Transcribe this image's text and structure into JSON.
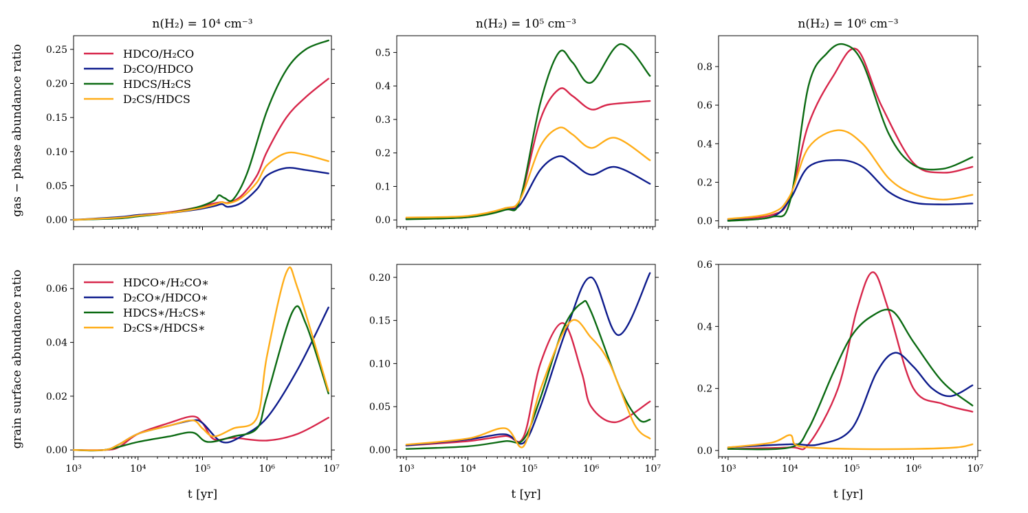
{
  "figure": {
    "ylabel_top": "gas − phase abundance ratio",
    "ylabel_bottom": "grain surface abundance ratio",
    "xlabel": "t [yr]",
    "column_titles": [
      "n(H₂) = 10⁴ cm⁻³",
      "n(H₂) = 10⁵ cm⁻³",
      "n(H₂) = 10⁶ cm⁻³"
    ]
  },
  "colors": {
    "s0": "#d7264a",
    "s1": "#0d1b8c",
    "s2": "#0b6a12",
    "s3": "#ffad18"
  },
  "chart_data": [
    {
      "type": "line",
      "row": 0,
      "col": 0,
      "xscale": "log",
      "title": "n(H₂) = 10⁴ cm⁻³",
      "xlabel": "",
      "ylabel": "gas − phase abundance ratio",
      "xlim": [
        1000,
        10000000
      ],
      "ylim": [
        -0.01,
        0.27
      ],
      "yticks": [
        0,
        0.05,
        0.1,
        0.15,
        0.2,
        0.25
      ],
      "ytick_labels": [
        "0.00",
        "0.05",
        "0.10",
        "0.15",
        "0.20",
        "0.25"
      ],
      "xtick_labels": [
        "",
        "",
        "",
        "",
        ""
      ],
      "legend": "top-left",
      "series": [
        {
          "name": "HDCO/H₂CO",
          "color_key": "s0",
          "x": [
            1000,
            5000,
            10000,
            30000,
            80000,
            150000,
            200000,
            250000,
            400000,
            700000,
            1000000,
            2000000,
            4000000,
            9000000
          ],
          "values": [
            0,
            0.003,
            0.007,
            0.011,
            0.018,
            0.024,
            0.026,
            0.025,
            0.035,
            0.065,
            0.1,
            0.15,
            0.18,
            0.207
          ]
        },
        {
          "name": "D₂CO/HDCO",
          "color_key": "s1",
          "x": [
            1000,
            5000,
            10000,
            30000,
            80000,
            150000,
            200000,
            250000,
            400000,
            700000,
            1000000,
            2000000,
            4000000,
            9000000
          ],
          "values": [
            0,
            0.004,
            0.007,
            0.01,
            0.015,
            0.02,
            0.023,
            0.019,
            0.025,
            0.045,
            0.065,
            0.076,
            0.073,
            0.068
          ]
        },
        {
          "name": "HDCS/H₂CS",
          "color_key": "s2",
          "x": [
            1000,
            5000,
            10000,
            30000,
            80000,
            150000,
            180000,
            220000,
            300000,
            500000,
            1000000,
            2000000,
            4000000,
            9000000
          ],
          "values": [
            0,
            0.002,
            0.005,
            0.01,
            0.018,
            0.028,
            0.036,
            0.032,
            0.03,
            0.07,
            0.16,
            0.22,
            0.25,
            0.263
          ]
        },
        {
          "name": "D₂CS/HDCS",
          "color_key": "s3",
          "x": [
            1000,
            5000,
            10000,
            30000,
            80000,
            150000,
            200000,
            250000,
            400000,
            700000,
            1000000,
            2000000,
            4000000,
            9000000
          ],
          "values": [
            0,
            0.003,
            0.006,
            0.01,
            0.016,
            0.022,
            0.026,
            0.024,
            0.032,
            0.055,
            0.08,
            0.098,
            0.095,
            0.086
          ]
        }
      ]
    },
    {
      "type": "line",
      "row": 0,
      "col": 1,
      "xscale": "log",
      "title": "n(H₂) = 10⁵ cm⁻³",
      "xlabel": "",
      "ylabel": "",
      "xlim": [
        700,
        11000000
      ],
      "ylim": [
        -0.02,
        0.55
      ],
      "yticks": [
        0,
        0.1,
        0.2,
        0.3,
        0.4,
        0.5
      ],
      "ytick_labels": [
        "0.0",
        "0.1",
        "0.2",
        "0.3",
        "0.4",
        "0.5"
      ],
      "xtick_labels": [
        "",
        "",
        "",
        "",
        ""
      ],
      "series": [
        {
          "name": "HDCO/H₂CO",
          "color_key": "s0",
          "x": [
            1000,
            10000,
            40000,
            70000,
            150000,
            300000,
            500000,
            1000000,
            2000000,
            9000000
          ],
          "values": [
            0.005,
            0.01,
            0.035,
            0.06,
            0.3,
            0.39,
            0.37,
            0.33,
            0.345,
            0.355
          ]
        },
        {
          "name": "D₂CO/HDCO",
          "color_key": "s1",
          "x": [
            1000,
            10000,
            40000,
            70000,
            150000,
            300000,
            500000,
            1000000,
            2500000,
            9000000
          ],
          "values": [
            0.003,
            0.008,
            0.03,
            0.045,
            0.15,
            0.19,
            0.17,
            0.135,
            0.158,
            0.108
          ]
        },
        {
          "name": "HDCS/H₂CS",
          "color_key": "s2",
          "x": [
            1000,
            10000,
            40000,
            70000,
            150000,
            300000,
            500000,
            1000000,
            3000000,
            9000000
          ],
          "values": [
            0.002,
            0.008,
            0.03,
            0.06,
            0.35,
            0.5,
            0.47,
            0.41,
            0.525,
            0.43
          ]
        },
        {
          "name": "D₂CS/HDCS",
          "color_key": "s3",
          "x": [
            1000,
            10000,
            40000,
            70000,
            150000,
            300000,
            500000,
            1000000,
            2500000,
            9000000
          ],
          "values": [
            0.007,
            0.012,
            0.035,
            0.06,
            0.22,
            0.275,
            0.255,
            0.215,
            0.245,
            0.178
          ]
        }
      ]
    },
    {
      "type": "line",
      "row": 0,
      "col": 2,
      "xscale": "log",
      "title": "n(H₂) = 10⁶ cm⁻³",
      "xlabel": "",
      "ylabel": "",
      "xlim": [
        700,
        11000000
      ],
      "ylim": [
        -0.03,
        0.96
      ],
      "yticks": [
        0,
        0.2,
        0.4,
        0.6,
        0.8
      ],
      "ytick_labels": [
        "0.0",
        "0.2",
        "0.4",
        "0.6",
        "0.8"
      ],
      "xtick_labels": [
        "",
        "",
        "",
        "",
        ""
      ],
      "series": [
        {
          "name": "HDCO/H₂CO",
          "color_key": "s0",
          "x": [
            1000,
            5000,
            10000,
            20000,
            50000,
            120000,
            300000,
            1000000,
            3000000,
            9000000
          ],
          "values": [
            0.01,
            0.03,
            0.12,
            0.5,
            0.75,
            0.89,
            0.6,
            0.3,
            0.25,
            0.28
          ]
        },
        {
          "name": "D₂CO/HDCO",
          "color_key": "s1",
          "x": [
            1000,
            5000,
            10000,
            20000,
            60000,
            150000,
            400000,
            1000000,
            3000000,
            9000000
          ],
          "values": [
            0.005,
            0.02,
            0.11,
            0.28,
            0.315,
            0.28,
            0.15,
            0.095,
            0.085,
            0.09
          ]
        },
        {
          "name": "HDCS/H₂CS",
          "color_key": "s2",
          "x": [
            1000,
            5000,
            10000,
            20000,
            40000,
            75000,
            150000,
            400000,
            1000000,
            3000000,
            9000000
          ],
          "values": [
            0.0,
            0.02,
            0.1,
            0.7,
            0.87,
            0.915,
            0.82,
            0.45,
            0.29,
            0.27,
            0.33
          ]
        },
        {
          "name": "D₂CS/HDCS",
          "color_key": "s3",
          "x": [
            1000,
            5000,
            10000,
            20000,
            60000,
            150000,
            400000,
            1000000,
            3000000,
            9000000
          ],
          "values": [
            0.01,
            0.04,
            0.13,
            0.38,
            0.47,
            0.4,
            0.22,
            0.14,
            0.11,
            0.135
          ]
        }
      ]
    },
    {
      "type": "line",
      "row": 1,
      "col": 0,
      "xscale": "log",
      "title": "",
      "xlabel": "t [yr]",
      "ylabel": "grain surface abundance ratio",
      "xlim": [
        1000,
        10000000
      ],
      "ylim": [
        -0.0025,
        0.069
      ],
      "yticks": [
        0,
        0.02,
        0.04,
        0.06
      ],
      "ytick_labels": [
        "0.00",
        "0.02",
        "0.04",
        "0.06"
      ],
      "xtick_labels": [
        "10³",
        "10⁴",
        "10⁵",
        "10⁶",
        "10⁷"
      ],
      "legend": "top-left",
      "series": [
        {
          "name": "HDCO∗/H₂CO∗",
          "color_key": "s0",
          "x": [
            1000,
            3000,
            5000,
            10000,
            30000,
            70000,
            100000,
            150000,
            300000,
            1000000,
            3000000,
            9000000
          ],
          "values": [
            0,
            0,
            0.001,
            0.006,
            0.01,
            0.0125,
            0.01,
            0.004,
            0.0045,
            0.0035,
            0.006,
            0.012
          ]
        },
        {
          "name": "D₂CO∗/HDCO∗",
          "color_key": "s1",
          "x": [
            1000,
            3000,
            5000,
            10000,
            30000,
            70000,
            100000,
            200000,
            400000,
            1000000,
            3000000,
            9000000
          ],
          "values": [
            0,
            0,
            0.002,
            0.006,
            0.009,
            0.011,
            0.01,
            0.003,
            0.005,
            0.012,
            0.03,
            0.053
          ]
        },
        {
          "name": "HDCS∗/H₂CS∗",
          "color_key": "s2",
          "x": [
            1000,
            3000,
            10000,
            30000,
            70000,
            120000,
            300000,
            700000,
            1000000,
            2500000,
            4000000,
            9000000
          ],
          "values": [
            0,
            0,
            0.003,
            0.005,
            0.0065,
            0.003,
            0.005,
            0.008,
            0.02,
            0.0515,
            0.047,
            0.021
          ]
        },
        {
          "name": "D₂CS∗/HDCS∗",
          "color_key": "s3",
          "x": [
            1000,
            3000,
            5000,
            10000,
            30000,
            70000,
            100000,
            150000,
            300000,
            700000,
            1000000,
            2000000,
            3000000,
            9000000
          ],
          "values": [
            0,
            0,
            0.002,
            0.006,
            0.009,
            0.011,
            0.008,
            0.005,
            0.008,
            0.012,
            0.035,
            0.066,
            0.06,
            0.022
          ]
        }
      ]
    },
    {
      "type": "line",
      "row": 1,
      "col": 1,
      "xscale": "log",
      "title": "",
      "xlabel": "t [yr]",
      "ylabel": "",
      "xlim": [
        700,
        11000000
      ],
      "ylim": [
        -0.008,
        0.215
      ],
      "yticks": [
        0,
        0.05,
        0.1,
        0.15,
        0.2
      ],
      "ytick_labels": [
        "0.00",
        "0.05",
        "0.10",
        "0.15",
        "0.20"
      ],
      "xtick_labels": [
        "10³",
        "10⁴",
        "10⁵",
        "10⁶",
        "10⁷"
      ],
      "series": [
        {
          "name": "HDCO∗/H₂CO∗",
          "color_key": "s0",
          "x": [
            1000,
            10000,
            40000,
            80000,
            150000,
            350000,
            700000,
            1000000,
            2500000,
            9000000
          ],
          "values": [
            0.005,
            0.01,
            0.016,
            0.015,
            0.1,
            0.147,
            0.09,
            0.05,
            0.032,
            0.056
          ]
        },
        {
          "name": "D₂CO∗/HDCO∗",
          "color_key": "s1",
          "x": [
            1000,
            10000,
            40000,
            80000,
            150000,
            400000,
            1000000,
            2800000,
            9000000
          ],
          "values": [
            0.005,
            0.012,
            0.018,
            0.008,
            0.05,
            0.14,
            0.2,
            0.133,
            0.205
          ]
        },
        {
          "name": "HDCS∗/H₂CS∗",
          "color_key": "s2",
          "x": [
            1000,
            10000,
            40000,
            80000,
            150000,
            350000,
            700000,
            1000000,
            3000000,
            6000000,
            9000000
          ],
          "values": [
            0.001,
            0.004,
            0.01,
            0.012,
            0.06,
            0.14,
            0.17,
            0.16,
            0.07,
            0.035,
            0.035
          ]
        },
        {
          "name": "D₂CS∗/HDCS∗",
          "color_key": "s3",
          "x": [
            1000,
            10000,
            40000,
            80000,
            150000,
            450000,
            1000000,
            2000000,
            5000000,
            9000000
          ],
          "values": [
            0.006,
            0.013,
            0.025,
            0.004,
            0.07,
            0.148,
            0.13,
            0.1,
            0.03,
            0.013
          ]
        }
      ]
    },
    {
      "type": "line",
      "row": 1,
      "col": 2,
      "xscale": "log",
      "title": "",
      "xlabel": "t [yr]",
      "ylabel": "",
      "xlim": [
        700,
        11000000
      ],
      "ylim": [
        -0.02,
        0.6
      ],
      "yticks": [
        0,
        0.2,
        0.4,
        0.6
      ],
      "ytick_labels": [
        "0.0",
        "0.2",
        "0.4",
        "0.6"
      ],
      "xtick_labels": [
        "10³",
        "10⁴",
        "10⁵",
        "10⁶",
        "10⁷"
      ],
      "series": [
        {
          "name": "HDCO∗/H₂CO∗",
          "color_key": "s0",
          "x": [
            1000,
            10000,
            20000,
            60000,
            120000,
            220000,
            400000,
            1000000,
            3000000,
            9000000
          ],
          "values": [
            0.005,
            0.01,
            0.02,
            0.2,
            0.45,
            0.575,
            0.45,
            0.2,
            0.15,
            0.125
          ]
        },
        {
          "name": "D₂CO∗/HDCO∗",
          "color_key": "s1",
          "x": [
            1000,
            10000,
            30000,
            100000,
            250000,
            500000,
            1000000,
            2000000,
            4000000,
            9000000
          ],
          "values": [
            0.01,
            0.02,
            0.02,
            0.07,
            0.25,
            0.315,
            0.27,
            0.2,
            0.175,
            0.21
          ]
        },
        {
          "name": "HDCS∗/H₂CS∗",
          "color_key": "s2",
          "x": [
            1000,
            10000,
            20000,
            50000,
            100000,
            200000,
            450000,
            1000000,
            3000000,
            9000000
          ],
          "values": [
            0.005,
            0.01,
            0.07,
            0.25,
            0.37,
            0.43,
            0.45,
            0.35,
            0.22,
            0.145
          ]
        },
        {
          "name": "D₂CS∗/HDCS∗",
          "color_key": "s3",
          "x": [
            1000,
            5000,
            10000,
            12000,
            20000,
            100000,
            1000000,
            5000000,
            9000000
          ],
          "values": [
            0.01,
            0.025,
            0.05,
            0.02,
            0.01,
            0.005,
            0.005,
            0.01,
            0.02
          ]
        }
      ]
    }
  ]
}
